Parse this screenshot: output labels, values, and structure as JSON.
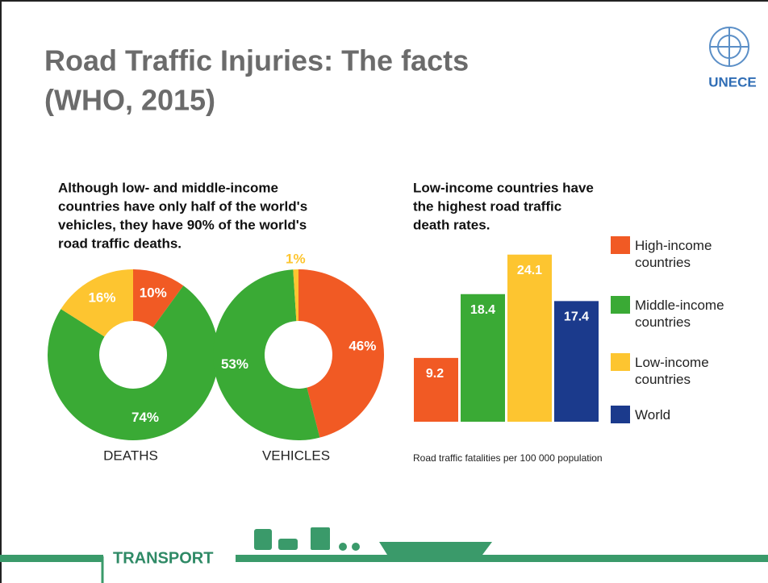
{
  "title_lines": [
    "Road Traffic Injuries: The facts",
    "(WHO, 2015)"
  ],
  "logo": "UNECE",
  "left_heading": [
    "Although low- and middle-income",
    "countries have only half of the world's",
    "vehicles, they have 90% of the world's",
    "road traffic deaths."
  ],
  "footer": "TRANSPORT",
  "chart_data": [
    {
      "type": "donut",
      "label": "DEATHS",
      "values": [
        10,
        74,
        16
      ],
      "value_labels": [
        "10%",
        "74%",
        "16%"
      ],
      "colors": [
        "#f15a24",
        "#3aaa35",
        "#fdc530"
      ]
    },
    {
      "type": "donut",
      "label": "VEHICLES",
      "values": [
        46,
        53,
        1
      ],
      "value_labels": [
        "46%",
        "53%",
        "1%"
      ],
      "colors": [
        "#f15a24",
        "#3aaa35",
        "#fdc530"
      ]
    },
    {
      "type": "bar",
      "title": [
        "Low-income countries have",
        "the highest road traffic",
        "death rates."
      ],
      "categories": [
        "High-income countries",
        "Middle-income countries",
        "Low-income countries",
        "World"
      ],
      "values": [
        9.2,
        18.4,
        24.1,
        17.4
      ],
      "colors": [
        "#f15a24",
        "#3aaa35",
        "#fdc530",
        "#1b3a8c"
      ],
      "footnote": "Road traffic fatalities per 100 000 population"
    }
  ]
}
